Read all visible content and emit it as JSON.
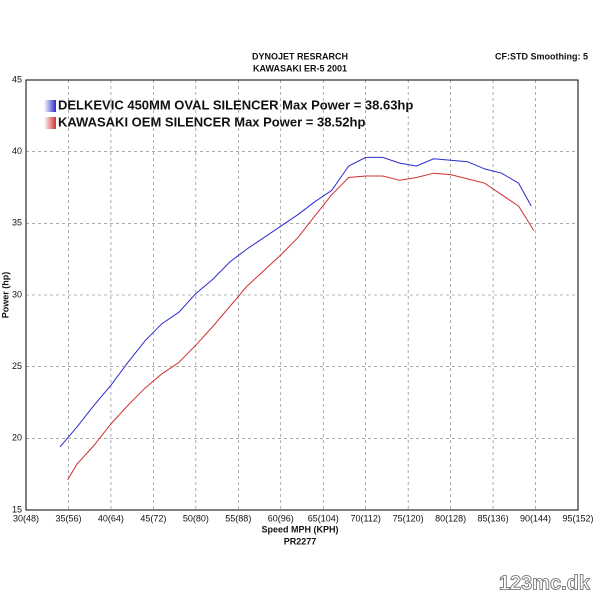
{
  "chart_data": {
    "type": "line",
    "title": "DYNOJET RESRARCH",
    "subtitle": "KAWASAKI ER-5 2001",
    "annotation": "CF:STD Smoothing: 5",
    "x_label": "Speed MPH (KPH)",
    "x_label_2": "PR2277",
    "y_label": "Power (hp)",
    "watermark": "123mc.dk",
    "xlim": [
      30,
      95
    ],
    "ylim": [
      15,
      45
    ],
    "xticks": [
      {
        "value": 30,
        "label": "30(48)"
      },
      {
        "value": 35,
        "label": "35(56)"
      },
      {
        "value": 40,
        "label": "40(64)"
      },
      {
        "value": 45,
        "label": "45(72)"
      },
      {
        "value": 50,
        "label": "50(80)"
      },
      {
        "value": 55,
        "label": "55(88)"
      },
      {
        "value": 60,
        "label": "60(96)"
      },
      {
        "value": 65,
        "label": "65(104)"
      },
      {
        "value": 70,
        "label": "70(112)"
      },
      {
        "value": 75,
        "label": "75(120)"
      },
      {
        "value": 80,
        "label": "80(128)"
      },
      {
        "value": 85,
        "label": "85(136)"
      },
      {
        "value": 90,
        "label": "90(144)"
      },
      {
        "value": 95,
        "label": "95(152)"
      }
    ],
    "yticks": [
      15,
      20,
      25,
      30,
      35,
      40,
      45
    ],
    "grid": true,
    "legend": "top-left",
    "series": [
      {
        "name": "DELKEVIC 450MM OVAL SILENCER Max Power = 38.63hp",
        "color": "#2b2bd0",
        "x": [
          34,
          36,
          38,
          40,
          42,
          44,
          46,
          48,
          50,
          52,
          54,
          56,
          58,
          60,
          62,
          64,
          66,
          68,
          70,
          72,
          74,
          76,
          78,
          80,
          82,
          84,
          86,
          88,
          89.5
        ],
        "values": [
          19.4,
          20.8,
          22.3,
          23.7,
          25.3,
          26.8,
          28.0,
          28.8,
          30.1,
          31.1,
          32.3,
          33.2,
          34.0,
          34.8,
          35.6,
          36.5,
          37.3,
          39.0,
          39.6,
          39.6,
          39.2,
          39.0,
          39.5,
          39.4,
          39.3,
          38.8,
          38.5,
          37.8,
          36.2
        ]
      },
      {
        "name": "KAWASAKI OEM SILENCER Max Power = 38.52hp",
        "color": "#d03030",
        "x": [
          34.9,
          36,
          38,
          40,
          42,
          44,
          46,
          48,
          50,
          52,
          54,
          56,
          58,
          60,
          62,
          64,
          66,
          68,
          70,
          72,
          74,
          76,
          78,
          80,
          82,
          84,
          86,
          88,
          89.8
        ],
        "values": [
          17.1,
          18.2,
          19.5,
          21.0,
          22.3,
          23.5,
          24.5,
          25.3,
          26.5,
          27.8,
          29.2,
          30.6,
          31.7,
          32.8,
          34.0,
          35.5,
          37.0,
          38.2,
          38.3,
          38.3,
          38.0,
          38.2,
          38.5,
          38.4,
          38.1,
          37.8,
          37.0,
          36.2,
          34.5
        ]
      }
    ]
  }
}
